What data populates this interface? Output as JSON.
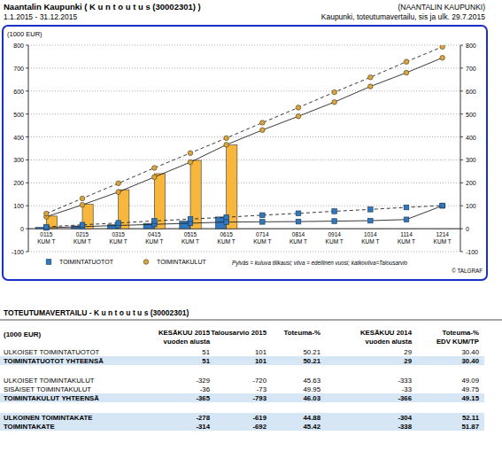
{
  "header": {
    "title": "Naantalin Kaupunki ( K u n t o u t u s (30002301) )",
    "org": "(NAANTALIN KAUPUNKI)",
    "period": "1.1.2015 - 31.12.2015",
    "report": "Kaupunki, toteutumavertailu, sis ja ulk. 29.7.2015"
  },
  "chart_data": {
    "type": "bar",
    "y_label": "(1000 EUR)",
    "categories": [
      "0115 KUM T",
      "0215 KUM T",
      "0315 KUM T",
      "0415 KUM T",
      "0515 KUM T",
      "0615 KUM T",
      "0714 KUM T",
      "0814 KUM T",
      "0914 KUM T",
      "1014 KUM T",
      "1114 KUM T",
      "1214 KUM T"
    ],
    "series": [
      {
        "name": "TOIMINTATUOTOT",
        "type": "bar",
        "color": "#2f78c0",
        "values": [
          6,
          12,
          17,
          23,
          33,
          51,
          null,
          null,
          null,
          null,
          null,
          null
        ]
      },
      {
        "name": "TOIMINTAKULUT",
        "type": "bar",
        "color": "#f6b73c",
        "values": [
          55,
          106,
          170,
          240,
          298,
          365,
          null,
          null,
          null,
          null,
          null,
          null
        ]
      },
      {
        "name": "TOIMINTAKULUT",
        "type": "line",
        "line_style": "solid",
        "marker": "circle",
        "color": "#d9a441",
        "values": [
          52,
          104,
          160,
          225,
          290,
          366,
          430,
          490,
          552,
          620,
          680,
          745
        ]
      },
      {
        "name": "TOIMINTAKULUT",
        "type": "line",
        "line_style": "dashed",
        "marker": "circle",
        "color": "#d9a441",
        "values": [
          66,
          132,
          198,
          265,
          330,
          395,
          462,
          528,
          595,
          660,
          728,
          793
        ]
      },
      {
        "name": "TOIMINTATUOTOT",
        "type": "line",
        "line_style": "solid",
        "marker": "square",
        "color": "#2f78c0",
        "values": [
          4,
          9,
          14,
          19,
          24,
          29,
          30,
          31,
          33,
          35,
          40,
          100
        ]
      },
      {
        "name": "TOIMINTATUOTOT",
        "type": "line",
        "line_style": "dashed",
        "marker": "square",
        "color": "#2f78c0",
        "values": [
          8,
          17,
          25,
          34,
          42,
          50,
          59,
          67,
          76,
          84,
          93,
          101
        ]
      }
    ],
    "ylim": [
      -100,
      800
    ],
    "yticks": [
      -100,
      0,
      100,
      200,
      300,
      400,
      500,
      600,
      700,
      800
    ],
    "y2lim": [
      -100,
      800
    ],
    "y2ticks": [
      -100,
      0,
      100,
      200,
      300,
      400,
      500,
      600,
      700,
      800
    ],
    "grid": true,
    "legend": "bottom",
    "annotations": [
      "Pylväs = kuluva tilikausi; viiva = edellinen vuosi; katkoviiva=Talousarvio",
      "© TALGRAF"
    ]
  },
  "table": {
    "title": "TOTEUTUMAVERTAILU - K u n t o u t u s (30002301)",
    "unit": "(1000 EUR)",
    "columns": [
      [
        "KESÄKUU 2015",
        "vuoden alusta"
      ],
      [
        "Talousarvio 2015"
      ],
      [
        "Toteuma-%"
      ],
      [
        "KESÄKUU 2014",
        "vuoden alusta"
      ],
      [
        "Toteuma-%",
        "EDV KUM/TP"
      ]
    ],
    "groups": [
      [
        {
          "cells": [
            "ULKOISET TOIMINTATUOTOT",
            "51",
            "101",
            "50.21",
            "29",
            "30.40"
          ],
          "emphasis": false
        },
        {
          "cells": [
            "TOIMINTATUOTOT YHTEENSÄ",
            "51",
            "101",
            "50.21",
            "29",
            "30.40"
          ],
          "emphasis": true
        }
      ],
      [
        {
          "cells": [
            "ULKOISET TOIMINTAKULUT",
            "-329",
            "-720",
            "45.63",
            "-333",
            "49.09"
          ],
          "emphasis": false
        },
        {
          "cells": [
            "SISÄISET TOIMINTAKULUT",
            "-36",
            "-73",
            "49.95",
            "-33",
            "49.75"
          ],
          "emphasis": false
        },
        {
          "cells": [
            "TOIMINTAKULUT YHTEENSÄ",
            "-365",
            "-793",
            "46.03",
            "-366",
            "49.15"
          ],
          "emphasis": true
        }
      ],
      [
        {
          "cells": [
            "ULKOINEN TOIMINTAKATE",
            "-278",
            "-619",
            "44.88",
            "-304",
            "52.11"
          ],
          "emphasis": true
        },
        {
          "cells": [
            "TOIMINTAKATE",
            "-314",
            "-692",
            "45.42",
            "-338",
            "51.87"
          ],
          "emphasis": true
        }
      ]
    ]
  }
}
